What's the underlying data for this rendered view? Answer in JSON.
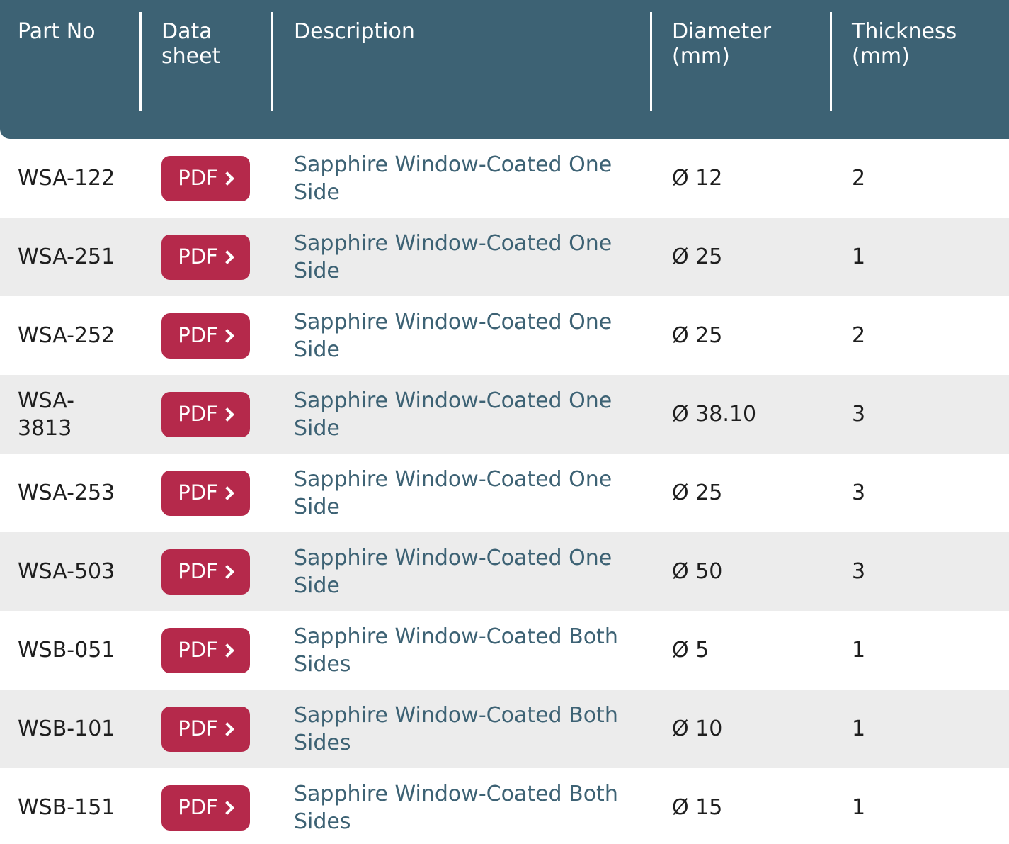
{
  "header": {
    "part_no": "Part No",
    "data_sheet": "Data\nsheet",
    "description": "Description",
    "diameter": "Diameter\n(mm)",
    "thickness": "Thickness\n(mm)"
  },
  "pdf_label": "PDF",
  "icons": {
    "pdf_button": "chevron-right-icon"
  },
  "colors": {
    "header_bg": "#3d6274",
    "button_bg": "#b5294b",
    "row_alt_bg": "#ececec",
    "description_text": "#3d6274"
  },
  "rows": [
    {
      "part": "WSA-122",
      "description": "Sapphire Window-Coated One Side",
      "diameter": "Ø 12",
      "thickness": "2"
    },
    {
      "part": "WSA-251",
      "description": "Sapphire Window-Coated One Side",
      "diameter": "Ø 25",
      "thickness": "1"
    },
    {
      "part": "WSA-252",
      "description": "Sapphire Window-Coated One Side",
      "diameter": "Ø 25",
      "thickness": "2"
    },
    {
      "part": "WSA-3813",
      "description": "Sapphire Window-Coated One Side",
      "diameter": "Ø 38.10",
      "thickness": "3"
    },
    {
      "part": "WSA-253",
      "description": "Sapphire Window-Coated One Side",
      "diameter": "Ø 25",
      "thickness": "3"
    },
    {
      "part": "WSA-503",
      "description": "Sapphire Window-Coated One Side",
      "diameter": "Ø 50",
      "thickness": "3"
    },
    {
      "part": "WSB-051",
      "description": "Sapphire Window-Coated Both Sides",
      "diameter": "Ø 5",
      "thickness": "1"
    },
    {
      "part": "WSB-101",
      "description": "Sapphire Window-Coated Both Sides",
      "diameter": "Ø 10",
      "thickness": "1"
    },
    {
      "part": "WSB-151",
      "description": "Sapphire Window-Coated Both Sides",
      "diameter": "Ø 15",
      "thickness": "1"
    }
  ]
}
